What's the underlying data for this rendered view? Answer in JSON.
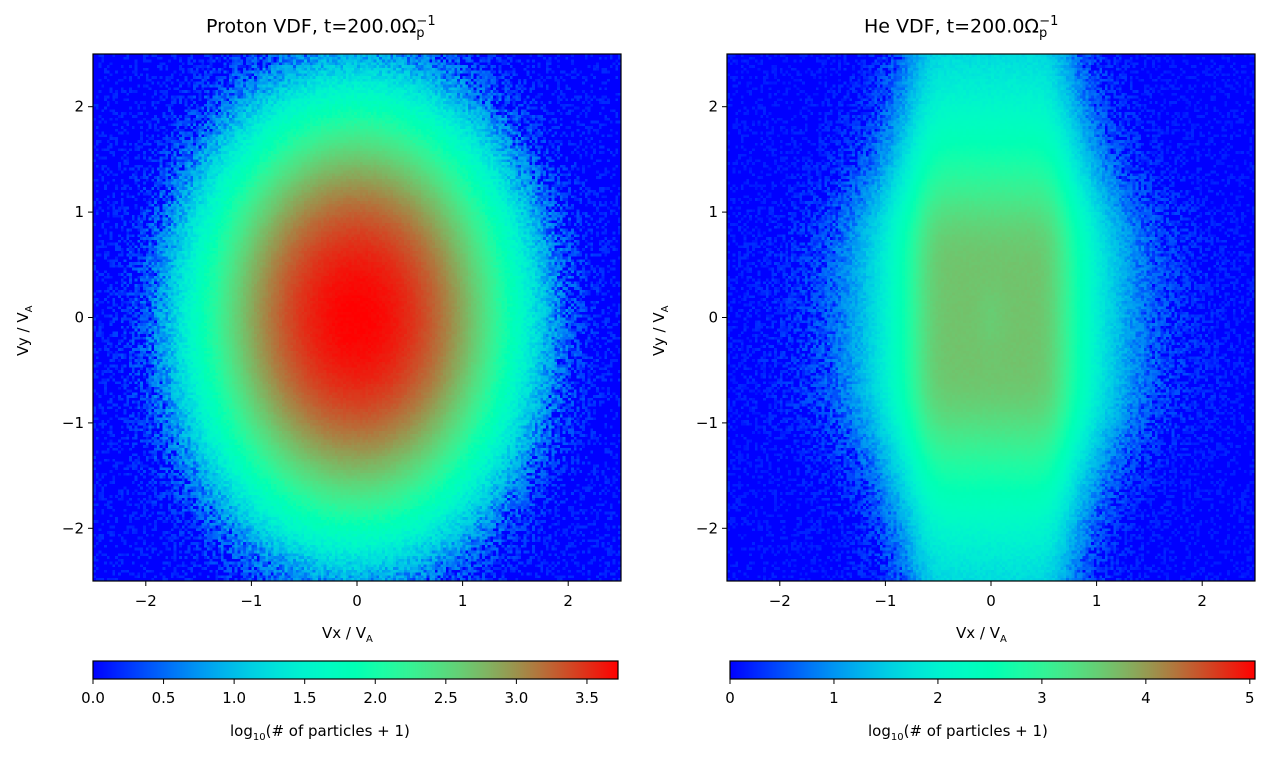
{
  "chart_data": [
    {
      "type": "heatmap",
      "species": "proton",
      "title": {
        "prefix": "Proton VDF, t=200.0Ω",
        "sub": "p",
        "sup": "−1"
      },
      "xlabel": {
        "main": "Vx / V",
        "sub": "A"
      },
      "ylabel": {
        "main": "Vy / V",
        "sub": "A"
      },
      "xlim": [
        -2.5,
        2.5
      ],
      "ylim": [
        -2.5,
        2.5
      ],
      "xticks": [
        -2,
        -1,
        0,
        1,
        2
      ],
      "yticks": [
        -2,
        -1,
        0,
        1,
        2
      ],
      "xtick_labels": [
        "−2",
        "−1",
        "0",
        "1",
        "2"
      ],
      "ytick_labels": [
        "−2",
        "−1",
        "0",
        "1",
        "2"
      ],
      "colormap": "rainbow",
      "colorbar": {
        "orientation": "horizontal",
        "location": "bottom",
        "range": [
          0,
          3.72
        ],
        "ticks": [
          0,
          0.5,
          1.0,
          1.5,
          2.0,
          2.5,
          3.0,
          3.5
        ],
        "tick_labels": [
          "0.0",
          "0.5",
          "1.0",
          "1.5",
          "2.0",
          "2.5",
          "3.0",
          "3.5"
        ],
        "label": {
          "pre": "log",
          "sub": "10",
          "post": "(# of particles + 1)"
        }
      },
      "distribution": {
        "peak_log10": 3.72,
        "sigma_x": 0.5,
        "sigma_y": 0.68,
        "x0": 0,
        "y0": 0
      }
    },
    {
      "type": "heatmap",
      "species": "helium",
      "title": {
        "prefix": "He VDF, t=200.0Ω",
        "sub": "p",
        "sup": "−1"
      },
      "xlabel": {
        "main": "Vx / V",
        "sub": "A"
      },
      "ylabel": {
        "main": "Vy / V",
        "sub": "A"
      },
      "xlim": [
        -2.5,
        2.5
      ],
      "ylim": [
        -2.5,
        2.5
      ],
      "xticks": [
        -2,
        -1,
        0,
        1,
        2
      ],
      "yticks": [
        -2,
        -1,
        0,
        1,
        2
      ],
      "xtick_labels": [
        "−2",
        "−1",
        "0",
        "1",
        "2"
      ],
      "ytick_labels": [
        "−2",
        "−1",
        "0",
        "1",
        "2"
      ],
      "colormap": "rainbow",
      "colorbar": {
        "orientation": "horizontal",
        "location": "bottom",
        "range": [
          0,
          5.05
        ],
        "ticks": [
          0,
          1,
          2,
          3,
          4,
          5
        ],
        "tick_labels": [
          "0",
          "1",
          "2",
          "3",
          "4",
          "5"
        ],
        "label": {
          "pre": "log",
          "sub": "10",
          "post": "(# of particles + 1)"
        }
      },
      "distribution": {
        "peak_log10": 3.65,
        "flat_half_width_x": 0.62,
        "flat_half_height_y": 1.0,
        "x_hole_center": 0.3
      }
    }
  ]
}
